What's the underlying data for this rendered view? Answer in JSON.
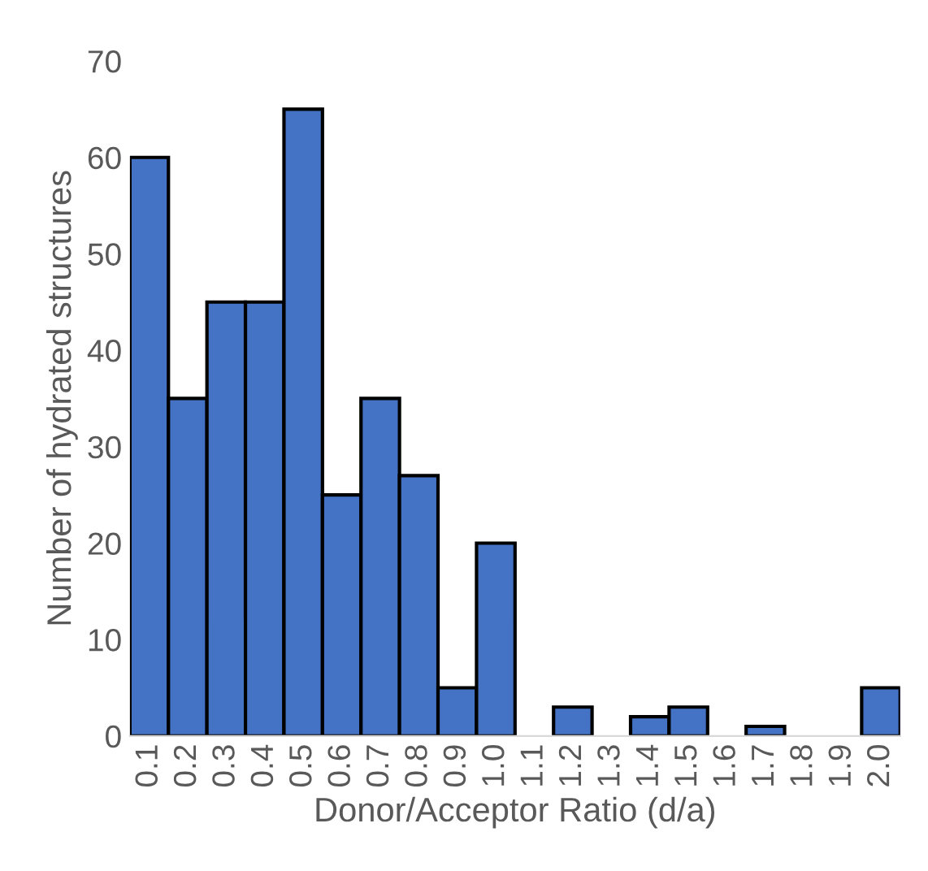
{
  "chart_data": {
    "type": "bar",
    "xlabel": "Donor/Acceptor Ratio (d/a)",
    "ylabel": "Number of hydrated structures",
    "categories": [
      "0.1",
      "0.2",
      "0.3",
      "0.4",
      "0.5",
      "0.6",
      "0.7",
      "0.8",
      "0.9",
      "1.0",
      "1.1",
      "1.2",
      "1.3",
      "1.4",
      "1.5",
      "1.6",
      "1.7",
      "1.8",
      "1.9",
      "2.0"
    ],
    "values": [
      60,
      35,
      45,
      45,
      65,
      25,
      35,
      27,
      5,
      20,
      0,
      3,
      0,
      2,
      3,
      0,
      1,
      0,
      0,
      5
    ],
    "color": "#4472c4",
    "ylim": [
      0,
      70
    ],
    "yticks": [
      0,
      10,
      20,
      30,
      40,
      50,
      60,
      70
    ],
    "grid": false,
    "legend": false
  }
}
